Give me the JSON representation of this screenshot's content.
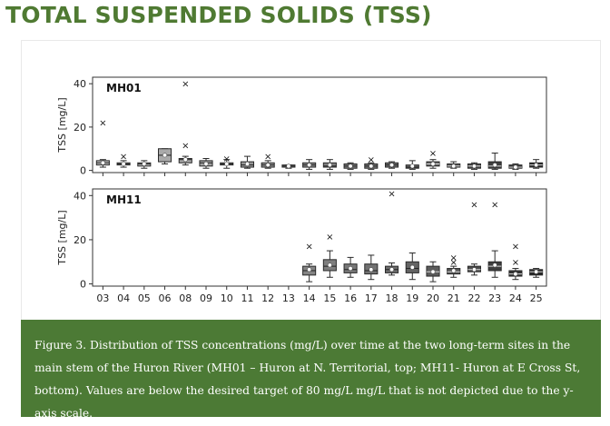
{
  "page": {
    "title": "TOTAL SUSPENDED SOLIDS (TSS)",
    "caption": "Figure 3. Distribution of TSS concentrations (mg/L) over time at the two long-term sites in the main stem of the Huron River (MH01 – Huron at N. Territorial, top; MH11- Huron at E Cross St, bottom). Values are below the desired target of 80 mg/L mg/L that is not depicted due to the y-axis scale.",
    "colors": {
      "title": "#4f7a32",
      "caption_bg": "#4c7a35",
      "caption_text": "#ffffff"
    }
  },
  "chart_data": [
    {
      "type": "box",
      "panel_label": "MH01",
      "ylabel": "TSS [mg/L]",
      "ylim": [
        -1,
        43
      ],
      "yticks": [
        0,
        20,
        40
      ],
      "categories": [
        "03",
        "04",
        "05",
        "06",
        "08",
        "09",
        "10",
        "11",
        "12",
        "13",
        "14",
        "15",
        "16",
        "17",
        "18",
        "19",
        "20",
        "21",
        "22",
        "23",
        "24",
        "25"
      ],
      "boxes": [
        {
          "x": "03",
          "whislo": 1.5,
          "q1": 2.5,
          "med": 3.5,
          "q3": 4.5,
          "whishi": 5,
          "mean": 3.5,
          "fliers": [
            22
          ]
        },
        {
          "x": "04",
          "whislo": 1.5,
          "q1": 2.5,
          "med": 3,
          "q3": 3.5,
          "whishi": 4.5,
          "mean": 3,
          "fliers": [
            6.5
          ]
        },
        {
          "x": "05",
          "whislo": 1,
          "q1": 2,
          "med": 3,
          "q3": 3.5,
          "whishi": 4.5,
          "mean": 3,
          "fliers": []
        },
        {
          "x": "06",
          "whislo": 3,
          "q1": 4,
          "med": 7,
          "q3": 10,
          "whishi": 10,
          "mean": 7,
          "fliers": []
        },
        {
          "x": "08",
          "whislo": 2.5,
          "q1": 3.5,
          "med": 5,
          "q3": 5.5,
          "whishi": 6.5,
          "mean": 5,
          "fliers": [
            40,
            11.5
          ]
        },
        {
          "x": "09",
          "whislo": 1,
          "q1": 2,
          "med": 3.5,
          "q3": 4.5,
          "whishi": 5.5,
          "mean": 3,
          "fliers": []
        },
        {
          "x": "10",
          "whislo": 1,
          "q1": 2.5,
          "med": 3,
          "q3": 3.5,
          "whishi": 5,
          "mean": 3,
          "fliers": [
            5.5
          ]
        },
        {
          "x": "11",
          "whislo": 1,
          "q1": 1.5,
          "med": 2.5,
          "q3": 4,
          "whishi": 6.5,
          "mean": 3,
          "fliers": []
        },
        {
          "x": "12",
          "whislo": 1,
          "q1": 1.5,
          "med": 2.5,
          "q3": 3.5,
          "whishi": 4.5,
          "mean": 2.5,
          "fliers": [
            6.5
          ]
        },
        {
          "x": "13",
          "whislo": 1,
          "q1": 1.5,
          "med": 2,
          "q3": 2.5,
          "whishi": 2.5,
          "mean": 2,
          "fliers": []
        },
        {
          "x": "14",
          "whislo": 0.5,
          "q1": 1.5,
          "med": 2.5,
          "q3": 3.5,
          "whishi": 5,
          "mean": 2.5,
          "fliers": []
        },
        {
          "x": "15",
          "whislo": 0.5,
          "q1": 1.5,
          "med": 2,
          "q3": 3.5,
          "whishi": 5,
          "mean": 2.5,
          "fliers": []
        },
        {
          "x": "16",
          "whislo": 0.5,
          "q1": 1,
          "med": 2,
          "q3": 3,
          "whishi": 3.5,
          "mean": 2,
          "fliers": []
        },
        {
          "x": "17",
          "whislo": 0.5,
          "q1": 1,
          "med": 2,
          "q3": 3,
          "whishi": 3.5,
          "mean": 2,
          "fliers": [
            5
          ]
        },
        {
          "x": "18",
          "whislo": 1,
          "q1": 1.5,
          "med": 2.5,
          "q3": 3.5,
          "whishi": 4,
          "mean": 2.5,
          "fliers": []
        },
        {
          "x": "19",
          "whislo": 0.5,
          "q1": 1,
          "med": 1.5,
          "q3": 2.5,
          "whishi": 4.5,
          "mean": 2,
          "fliers": []
        },
        {
          "x": "20",
          "whislo": 1,
          "q1": 2,
          "med": 3,
          "q3": 4,
          "whishi": 5,
          "mean": 3,
          "fliers": [
            8
          ]
        },
        {
          "x": "21",
          "whislo": 1,
          "q1": 1.5,
          "med": 2,
          "q3": 3,
          "whishi": 4,
          "mean": 2,
          "fliers": []
        },
        {
          "x": "22",
          "whislo": 0.5,
          "q1": 1,
          "med": 2,
          "q3": 3,
          "whishi": 3.5,
          "mean": 2,
          "fliers": []
        },
        {
          "x": "23",
          "whislo": 0.5,
          "q1": 1,
          "med": 2,
          "q3": 4,
          "whishi": 8,
          "mean": 2.5,
          "fliers": []
        },
        {
          "x": "24",
          "whislo": 0.5,
          "q1": 1,
          "med": 1.5,
          "q3": 2.5,
          "whishi": 3,
          "mean": 1.5,
          "fliers": []
        },
        {
          "x": "25",
          "whislo": 1,
          "q1": 1.5,
          "med": 2.5,
          "q3": 3.5,
          "whishi": 5,
          "mean": 2.5,
          "fliers": []
        }
      ]
    },
    {
      "type": "box",
      "panel_label": "MH11",
      "ylabel": "TSS [mg/L]",
      "ylim": [
        -1,
        43
      ],
      "yticks": [
        0,
        20,
        40
      ],
      "categories": [
        "03",
        "04",
        "05",
        "06",
        "08",
        "09",
        "10",
        "11",
        "12",
        "13",
        "14",
        "15",
        "16",
        "17",
        "18",
        "19",
        "20",
        "21",
        "22",
        "23",
        "24",
        "25"
      ],
      "boxes": [
        {
          "x": "14",
          "whislo": 1,
          "q1": 4,
          "med": 6,
          "q3": 8,
          "whishi": 9,
          "mean": 6.5,
          "fliers": [
            17
          ]
        },
        {
          "x": "15",
          "whislo": 3,
          "q1": 6,
          "med": 8,
          "q3": 11,
          "whishi": 15,
          "mean": 8.5,
          "fliers": [
            21.5
          ]
        },
        {
          "x": "16",
          "whislo": 3,
          "q1": 5,
          "med": 6.5,
          "q3": 9,
          "whishi": 12,
          "mean": 7,
          "fliers": []
        },
        {
          "x": "17",
          "whislo": 2,
          "q1": 4.5,
          "med": 6,
          "q3": 9,
          "whishi": 13,
          "mean": 6.5,
          "fliers": []
        },
        {
          "x": "18",
          "whislo": 4,
          "q1": 5,
          "med": 6.5,
          "q3": 8,
          "whishi": 9.5,
          "mean": 6.5,
          "fliers": [
            41
          ]
        },
        {
          "x": "19",
          "whislo": 2,
          "q1": 5,
          "med": 7,
          "q3": 10,
          "whishi": 14,
          "mean": 7.5,
          "fliers": []
        },
        {
          "x": "20",
          "whislo": 1,
          "q1": 3.5,
          "med": 5.5,
          "q3": 8,
          "whishi": 10,
          "mean": 5.5,
          "fliers": []
        },
        {
          "x": "21",
          "whislo": 3,
          "q1": 4.5,
          "med": 5.5,
          "q3": 7,
          "whishi": 8,
          "mean": 6,
          "fliers": [
            12,
            10
          ]
        },
        {
          "x": "22",
          "whislo": 4,
          "q1": 5.5,
          "med": 6.5,
          "q3": 8,
          "whishi": 9,
          "mean": 6.5,
          "fliers": [
            36
          ]
        },
        {
          "x": "23",
          "whislo": 3,
          "q1": 6,
          "med": 8,
          "q3": 10,
          "whishi": 15,
          "mean": 8.5,
          "fliers": [
            36
          ]
        },
        {
          "x": "24",
          "whislo": 2,
          "q1": 3.5,
          "med": 4.5,
          "q3": 6,
          "whishi": 7,
          "mean": 4.5,
          "fliers": [
            17,
            10
          ]
        },
        {
          "x": "25",
          "whislo": 3,
          "q1": 4,
          "med": 5.5,
          "q3": 6.5,
          "whishi": 7,
          "mean": 5.5,
          "fliers": []
        }
      ]
    }
  ]
}
